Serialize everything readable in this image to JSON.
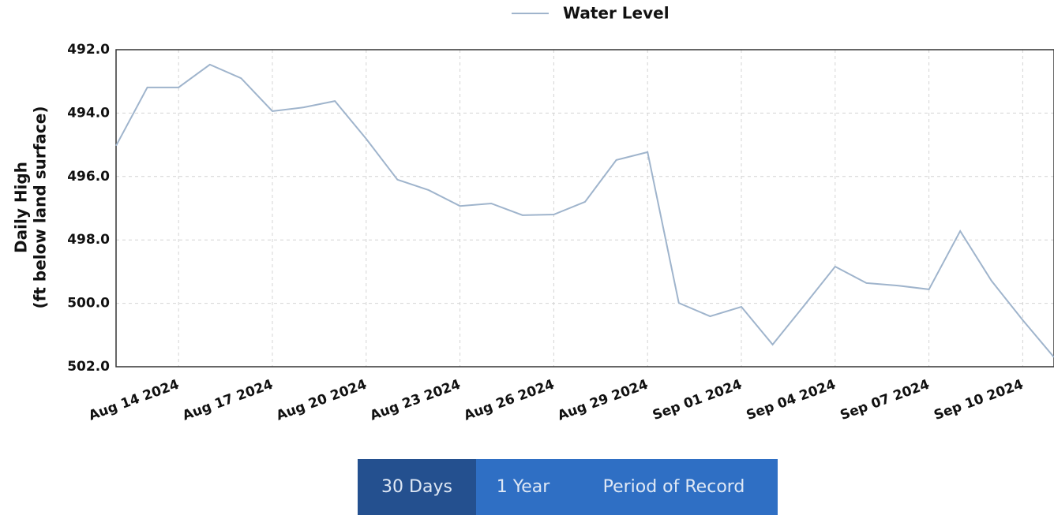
{
  "chart_data": {
    "type": "line",
    "y_label": [
      "Daily High",
      "(ft below land surface)"
    ],
    "x": [
      "2024-08-12",
      "2024-08-13",
      "2024-08-14",
      "2024-08-15",
      "2024-08-16",
      "2024-08-17",
      "2024-08-18",
      "2024-08-19",
      "2024-08-20",
      "2024-08-21",
      "2024-08-22",
      "2024-08-23",
      "2024-08-24",
      "2024-08-25",
      "2024-08-26",
      "2024-08-27",
      "2024-08-28",
      "2024-08-29",
      "2024-08-30",
      "2024-08-31",
      "2024-09-01",
      "2024-09-02",
      "2024-09-03",
      "2024-09-04",
      "2024-09-05",
      "2024-09-06",
      "2024-09-07",
      "2024-09-08",
      "2024-09-09",
      "2024-09-10",
      "2024-09-11"
    ],
    "series": [
      {
        "name": "Water Level",
        "color": "#9fb4cc",
        "values": [
          495.03,
          493.19,
          493.19,
          492.47,
          492.9,
          493.94,
          493.82,
          493.62,
          494.81,
          496.1,
          496.43,
          496.93,
          496.85,
          497.22,
          497.2,
          496.8,
          495.48,
          495.23,
          499.99,
          500.41,
          500.11,
          501.3,
          500.08,
          498.84,
          499.36,
          499.44,
          499.56,
          497.72,
          499.29,
          500.53,
          501.7
        ]
      }
    ],
    "xlim": [
      "2024-08-12",
      "2024-09-11"
    ],
    "xticks": [
      {
        "value": "2024-08-14",
        "label": "Aug 14 2024"
      },
      {
        "value": "2024-08-17",
        "label": "Aug 17 2024"
      },
      {
        "value": "2024-08-20",
        "label": "Aug 20 2024"
      },
      {
        "value": "2024-08-23",
        "label": "Aug 23 2024"
      },
      {
        "value": "2024-08-26",
        "label": "Aug 26 2024"
      },
      {
        "value": "2024-08-29",
        "label": "Aug 29 2024"
      },
      {
        "value": "2024-09-01",
        "label": "Sep 01 2024"
      },
      {
        "value": "2024-09-04",
        "label": "Sep 04 2024"
      },
      {
        "value": "2024-09-07",
        "label": "Sep 07 2024"
      },
      {
        "value": "2024-09-10",
        "label": "Sep 10 2024"
      }
    ],
    "ylim": [
      492,
      502
    ],
    "invert_y": true,
    "yticks": [
      {
        "value": 492,
        "label": "492.0"
      },
      {
        "value": 494,
        "label": "494.0"
      },
      {
        "value": 496,
        "label": "496.0"
      },
      {
        "value": 498,
        "label": "498.0"
      },
      {
        "value": 500,
        "label": "500.0"
      },
      {
        "value": 502,
        "label": "502.0"
      }
    ],
    "grid": true,
    "legend": "top"
  },
  "buttons": [
    "30 Days",
    "1 Year",
    "Period of Record"
  ]
}
